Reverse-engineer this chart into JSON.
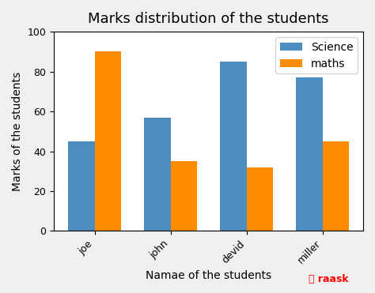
{
  "title": "Marks distribution of the students",
  "xlabel": "Namae of the students",
  "ylabel": "Marks of the students",
  "categories": [
    "joe",
    "john",
    "devid",
    "miller"
  ],
  "science": [
    45,
    57,
    85,
    77
  ],
  "maths": [
    90,
    35,
    32,
    45
  ],
  "science_color": "#4C8CBF",
  "maths_color": "#FF8C00",
  "legend_labels": [
    "Science",
    "maths"
  ],
  "ylim": [
    0,
    100
  ],
  "bar_width": 0.35,
  "title_fontsize": 13,
  "label_fontsize": 10,
  "tick_fontsize": 9,
  "legend_fontsize": 10,
  "bg_color": "#f0f0f0",
  "axes_bg_color": "#ffffff"
}
